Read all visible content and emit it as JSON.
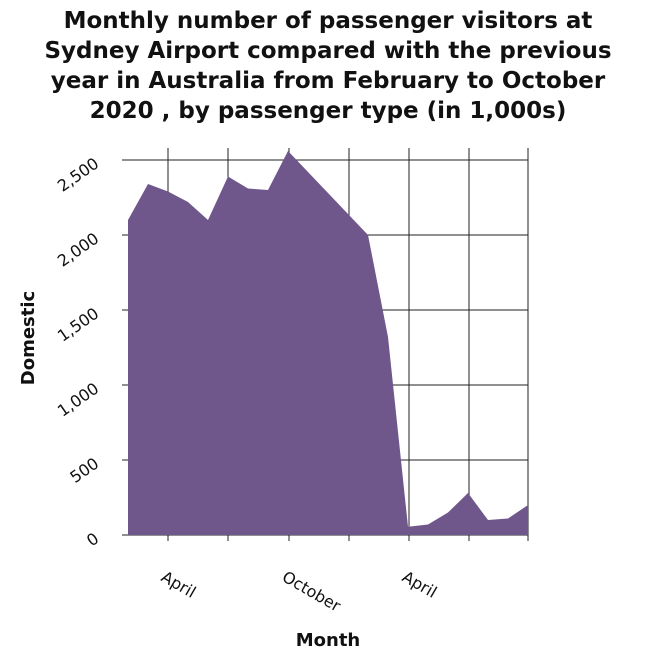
{
  "title_lines": [
    "Monthly number of passenger visitors at",
    "Sydney Airport compared with the previous",
    "year in Australia from February to October",
    "2020 , by passenger type (in 1,000s)"
  ],
  "chart_data": {
    "type": "area",
    "title": "Monthly number of passenger visitors at Sydney Airport compared with the previous year in Australia from February to October 2020 , by passenger type (in 1,000s)",
    "xlabel": "Month",
    "ylabel": "Domestic",
    "x_tick_labels": [
      "April",
      "October",
      "April"
    ],
    "y_tick_labels": [
      "0",
      "500",
      "1,000",
      "1,500",
      "2,000",
      "2,500"
    ],
    "ylim": [
      0,
      2500
    ],
    "grid": true,
    "color": "#6f578c",
    "series": [
      {
        "values": [
          2100,
          2340,
          2290,
          2220,
          2100,
          2390,
          2310,
          2300,
          2560,
          2420,
          2280,
          2140,
          2000,
          1320,
          55,
          70,
          150,
          280,
          100,
          110,
          200
        ]
      }
    ]
  }
}
